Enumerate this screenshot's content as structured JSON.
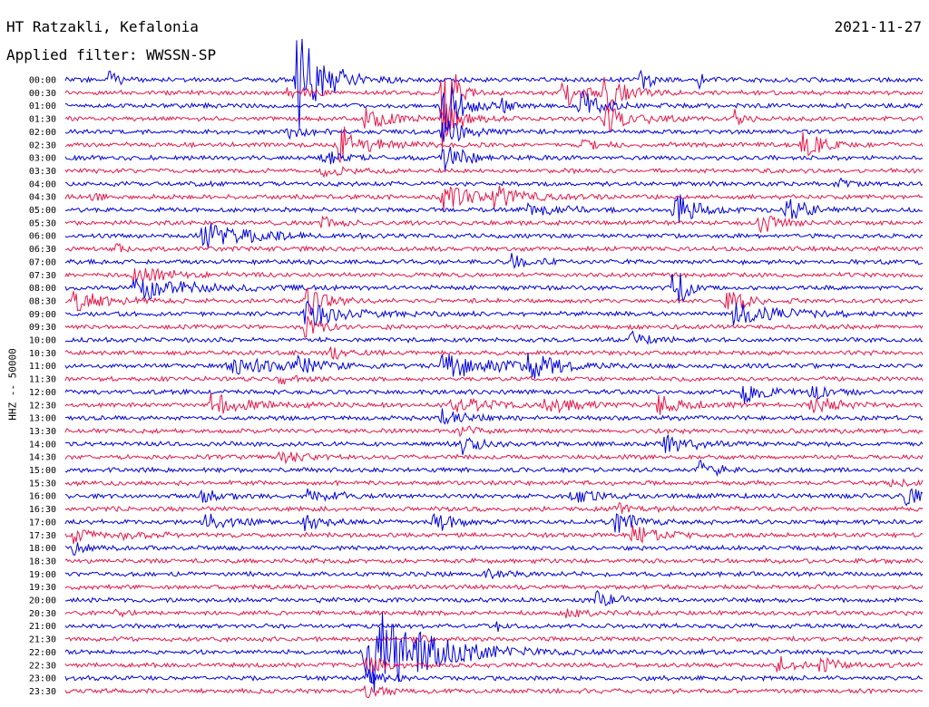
{
  "header": {
    "station": "HT Ratzakli, Kefalonia",
    "filter": "Applied filter: WWSSN-SP",
    "date": "2021-11-27"
  },
  "chart_data": {
    "type": "line",
    "title": "HT Ratzakli, Kefalonia",
    "subtitle": "Applied filter: WWSSN-SP",
    "date": "2021-11-27",
    "ylabel": "HHZ -- 50000",
    "row_interval_minutes": 30,
    "colors": {
      "even": "#0000e0",
      "odd": "#e8174a",
      "text": "#000000"
    },
    "rows": [
      {
        "label": "00:00",
        "events": [
          {
            "t": 0.27,
            "a": 60,
            "d": 0.03
          },
          {
            "t": 0.05,
            "a": 12,
            "d": 0.01
          },
          {
            "t": 0.67,
            "a": 20,
            "d": 0.01
          },
          {
            "t": 0.74,
            "a": 8,
            "d": 0.01
          }
        ]
      },
      {
        "label": "00:30",
        "events": [
          {
            "t": 0.44,
            "a": 90,
            "d": 0.01
          },
          {
            "t": 0.58,
            "a": 18,
            "d": 0.02
          },
          {
            "t": 0.63,
            "a": 25,
            "d": 0.02
          },
          {
            "t": 0.26,
            "a": 8,
            "d": 0.02
          }
        ]
      },
      {
        "label": "01:00",
        "events": [
          {
            "t": 0.44,
            "a": 35,
            "d": 0.02
          },
          {
            "t": 0.6,
            "a": 20,
            "d": 0.02
          },
          {
            "t": 0.51,
            "a": 8,
            "d": 0.01
          }
        ]
      },
      {
        "label": "01:30",
        "events": [
          {
            "t": 0.35,
            "a": 12,
            "d": 0.03
          },
          {
            "t": 0.44,
            "a": 20,
            "d": 0.02
          },
          {
            "t": 0.63,
            "a": 15,
            "d": 0.03
          },
          {
            "t": 0.78,
            "a": 10,
            "d": 0.01
          }
        ]
      },
      {
        "label": "02:00",
        "events": [
          {
            "t": 0.44,
            "a": 20,
            "d": 0.02
          },
          {
            "t": 0.26,
            "a": 6,
            "d": 0.02
          }
        ]
      },
      {
        "label": "02:30",
        "events": [
          {
            "t": 0.32,
            "a": 22,
            "d": 0.03
          },
          {
            "t": 0.86,
            "a": 18,
            "d": 0.02
          },
          {
            "t": 0.6,
            "a": 6,
            "d": 0.02
          }
        ]
      },
      {
        "label": "03:00",
        "events": [
          {
            "t": 0.44,
            "a": 22,
            "d": 0.02
          },
          {
            "t": 0.3,
            "a": 8,
            "d": 0.02
          }
        ]
      },
      {
        "label": "03:30",
        "events": [
          {
            "t": 0.3,
            "a": 5,
            "d": 0.03
          }
        ]
      },
      {
        "label": "04:00",
        "events": [
          {
            "t": 0.9,
            "a": 6,
            "d": 0.01
          }
        ]
      },
      {
        "label": "04:30",
        "events": [
          {
            "t": 0.44,
            "a": 14,
            "d": 0.03
          },
          {
            "t": 0.5,
            "a": 12,
            "d": 0.03
          },
          {
            "t": 0.03,
            "a": 6,
            "d": 0.01
          }
        ]
      },
      {
        "label": "05:00",
        "events": [
          {
            "t": 0.71,
            "a": 22,
            "d": 0.02
          },
          {
            "t": 0.84,
            "a": 18,
            "d": 0.02
          },
          {
            "t": 0.54,
            "a": 6,
            "d": 0.04
          }
        ]
      },
      {
        "label": "05:30",
        "events": [
          {
            "t": 0.81,
            "a": 12,
            "d": 0.02
          },
          {
            "t": 0.3,
            "a": 6,
            "d": 0.02
          }
        ]
      },
      {
        "label": "06:00",
        "events": [
          {
            "t": 0.16,
            "a": 14,
            "d": 0.05
          }
        ]
      },
      {
        "label": "06:30",
        "events": [
          {
            "t": 0.06,
            "a": 6,
            "d": 0.01
          }
        ]
      },
      {
        "label": "07:00",
        "events": [
          {
            "t": 0.52,
            "a": 8,
            "d": 0.02
          }
        ]
      },
      {
        "label": "07:30",
        "events": [
          {
            "t": 0.08,
            "a": 8,
            "d": 0.04
          }
        ]
      },
      {
        "label": "08:00",
        "events": [
          {
            "t": 0.08,
            "a": 14,
            "d": 0.06
          },
          {
            "t": 0.71,
            "a": 40,
            "d": 0.01
          }
        ]
      },
      {
        "label": "08:30",
        "events": [
          {
            "t": 0.01,
            "a": 12,
            "d": 0.03
          },
          {
            "t": 0.28,
            "a": 18,
            "d": 0.02
          },
          {
            "t": 0.77,
            "a": 14,
            "d": 0.02
          }
        ]
      },
      {
        "label": "09:00",
        "events": [
          {
            "t": 0.28,
            "a": 16,
            "d": 0.04
          },
          {
            "t": 0.78,
            "a": 12,
            "d": 0.05
          }
        ]
      },
      {
        "label": "09:30",
        "events": [
          {
            "t": 0.28,
            "a": 14,
            "d": 0.02
          }
        ]
      },
      {
        "label": "10:00",
        "events": [
          {
            "t": 0.66,
            "a": 8,
            "d": 0.02
          }
        ]
      },
      {
        "label": "10:30",
        "events": [
          {
            "t": 0.31,
            "a": 6,
            "d": 0.02
          }
        ]
      },
      {
        "label": "11:00",
        "events": [
          {
            "t": 0.19,
            "a": 14,
            "d": 0.04
          },
          {
            "t": 0.27,
            "a": 8,
            "d": 0.03
          },
          {
            "t": 0.44,
            "a": 16,
            "d": 0.05
          },
          {
            "t": 0.54,
            "a": 14,
            "d": 0.03
          }
        ]
      },
      {
        "label": "11:30",
        "events": [
          {
            "t": 0.25,
            "a": 5,
            "d": 0.02
          }
        ]
      },
      {
        "label": "12:00",
        "events": [
          {
            "t": 0.79,
            "a": 14,
            "d": 0.02
          },
          {
            "t": 0.87,
            "a": 10,
            "d": 0.02
          }
        ]
      },
      {
        "label": "12:30",
        "events": [
          {
            "t": 0.17,
            "a": 12,
            "d": 0.04
          },
          {
            "t": 0.45,
            "a": 10,
            "d": 0.04
          },
          {
            "t": 0.56,
            "a": 10,
            "d": 0.03
          },
          {
            "t": 0.69,
            "a": 10,
            "d": 0.03
          },
          {
            "t": 0.87,
            "a": 10,
            "d": 0.03
          }
        ]
      },
      {
        "label": "13:00",
        "events": [
          {
            "t": 0.44,
            "a": 10,
            "d": 0.02
          }
        ]
      },
      {
        "label": "13:30",
        "events": [
          {
            "t": 0.46,
            "a": 5,
            "d": 0.02
          }
        ]
      },
      {
        "label": "14:00",
        "events": [
          {
            "t": 0.46,
            "a": 12,
            "d": 0.02
          },
          {
            "t": 0.7,
            "a": 12,
            "d": 0.03
          }
        ]
      },
      {
        "label": "14:30",
        "events": [
          {
            "t": 0.25,
            "a": 6,
            "d": 0.03
          }
        ]
      },
      {
        "label": "15:00",
        "events": [
          {
            "t": 0.74,
            "a": 10,
            "d": 0.02
          }
        ]
      },
      {
        "label": "15:30",
        "events": [
          {
            "t": 0.96,
            "a": 6,
            "d": 0.02
          }
        ]
      },
      {
        "label": "16:00",
        "events": [
          {
            "t": 0.16,
            "a": 8,
            "d": 0.02
          },
          {
            "t": 0.28,
            "a": 8,
            "d": 0.03
          },
          {
            "t": 0.59,
            "a": 10,
            "d": 0.02
          },
          {
            "t": 0.98,
            "a": 10,
            "d": 0.02
          }
        ]
      },
      {
        "label": "16:30",
        "events": [
          {
            "t": 0.64,
            "a": 8,
            "d": 0.02
          }
        ]
      },
      {
        "label": "17:00",
        "events": [
          {
            "t": 0.16,
            "a": 10,
            "d": 0.03
          },
          {
            "t": 0.28,
            "a": 10,
            "d": 0.02
          },
          {
            "t": 0.43,
            "a": 12,
            "d": 0.02
          },
          {
            "t": 0.64,
            "a": 14,
            "d": 0.02
          }
        ]
      },
      {
        "label": "17:30",
        "events": [
          {
            "t": 0.01,
            "a": 8,
            "d": 0.02
          },
          {
            "t": 0.07,
            "a": 6,
            "d": 0.02
          },
          {
            "t": 0.66,
            "a": 10,
            "d": 0.03
          }
        ]
      },
      {
        "label": "18:00",
        "events": [
          {
            "t": 0.01,
            "a": 6,
            "d": 0.02
          }
        ]
      },
      {
        "label": "18:30",
        "events": []
      },
      {
        "label": "19:00",
        "events": [
          {
            "t": 0.49,
            "a": 5,
            "d": 0.02
          }
        ]
      },
      {
        "label": "19:30",
        "events": []
      },
      {
        "label": "20:00",
        "events": [
          {
            "t": 0.62,
            "a": 10,
            "d": 0.02
          }
        ]
      },
      {
        "label": "20:30",
        "events": [
          {
            "t": 0.06,
            "a": 6,
            "d": 0.01
          },
          {
            "t": 0.58,
            "a": 6,
            "d": 0.02
          }
        ]
      },
      {
        "label": "21:00",
        "events": [
          {
            "t": 0.5,
            "a": 8,
            "d": 0.01
          }
        ]
      },
      {
        "label": "21:30",
        "events": [
          {
            "t": 0.41,
            "a": 6,
            "d": 0.01
          }
        ]
      },
      {
        "label": "22:00",
        "events": [
          {
            "t": 0.35,
            "a": 60,
            "d": 0.06
          }
        ]
      },
      {
        "label": "22:30",
        "events": [
          {
            "t": 0.35,
            "a": 12,
            "d": 0.02
          },
          {
            "t": 0.83,
            "a": 10,
            "d": 0.02
          },
          {
            "t": 0.88,
            "a": 8,
            "d": 0.02
          }
        ]
      },
      {
        "label": "23:00",
        "events": [
          {
            "t": 0.35,
            "a": 10,
            "d": 0.02
          }
        ]
      },
      {
        "label": "23:30",
        "events": [
          {
            "t": 0.35,
            "a": 8,
            "d": 0.02
          }
        ]
      }
    ]
  }
}
